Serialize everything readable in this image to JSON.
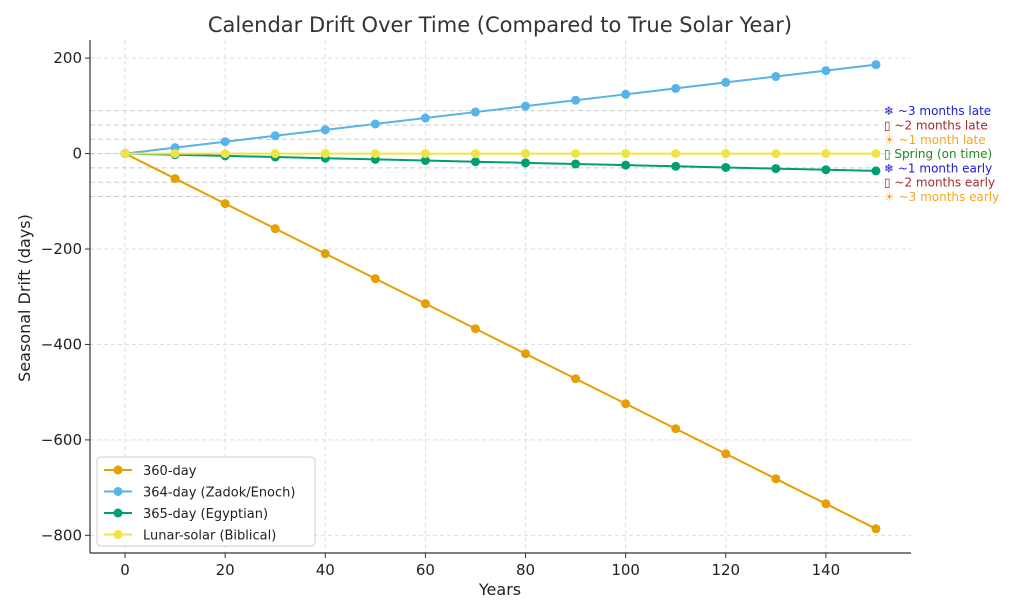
{
  "chart_data": {
    "type": "line",
    "title": "Calendar Drift Over Time (Compared to True Solar Year)",
    "xlabel": "Years",
    "ylabel": "Seasonal Drift (days)",
    "xlim": [
      -7,
      157
    ],
    "ylim": [
      -837,
      238
    ],
    "xticks": [
      0,
      20,
      40,
      60,
      80,
      100,
      120,
      140
    ],
    "yticks": [
      200,
      0,
      -200,
      -400,
      -600,
      -800
    ],
    "ytick_labels": [
      "200",
      "0",
      "−200",
      "−400",
      "−600",
      "−800"
    ],
    "grid": true,
    "legend_position": "lower-left",
    "x": [
      0,
      10,
      20,
      30,
      40,
      50,
      60,
      70,
      80,
      90,
      100,
      110,
      120,
      130,
      140,
      150
    ],
    "series": [
      {
        "name": "360-day",
        "color": "#E69F00",
        "values": [
          0,
          -52.4,
          -104.8,
          -157.3,
          -209.7,
          -262.1,
          -314.5,
          -367.0,
          -419.4,
          -471.8,
          -524.2,
          -576.6,
          -629.1,
          -681.5,
          -733.9,
          -786.3
        ]
      },
      {
        "name": "364-day (Zadok/Enoch)",
        "color": "#56B4E9",
        "values": [
          0,
          12.4,
          24.8,
          37.3,
          49.7,
          62.1,
          74.5,
          87.0,
          99.4,
          111.8,
          124.2,
          136.6,
          149.1,
          161.5,
          173.9,
          186.3
        ]
      },
      {
        "name": "365-day (Egyptian)",
        "color": "#009E73",
        "values": [
          0,
          -2.4,
          -4.8,
          -7.3,
          -9.7,
          -12.1,
          -14.5,
          -17.0,
          -19.4,
          -21.8,
          -24.2,
          -26.6,
          -29.1,
          -31.5,
          -33.9,
          -36.3
        ]
      },
      {
        "name": "Lunar-solar (Biblical)",
        "color": "#F0E442",
        "values": [
          0,
          0,
          0,
          0,
          0,
          0,
          0,
          0,
          0,
          0,
          0,
          0,
          0,
          0,
          0,
          0
        ]
      }
    ],
    "reference_lines": [
      {
        "value": 90,
        "label": "❄ ~3 months late",
        "color": "#1a1ad6"
      },
      {
        "value": 60,
        "label": "▯ ~2 months late",
        "color": "#a52a2a"
      },
      {
        "value": 30,
        "label": "☀ ~1 month late",
        "color": "#f5a623"
      },
      {
        "value": 0,
        "label": "▯ Spring (on time)",
        "color": "#1f8a1f"
      },
      {
        "value": -30,
        "label": "❄ ~1 month early",
        "color": "#1a1ad6"
      },
      {
        "value": -60,
        "label": "▯ ~2 months early",
        "color": "#a52a2a"
      },
      {
        "value": -90,
        "label": "☀ ~3 months early",
        "color": "#f5a623"
      }
    ]
  }
}
